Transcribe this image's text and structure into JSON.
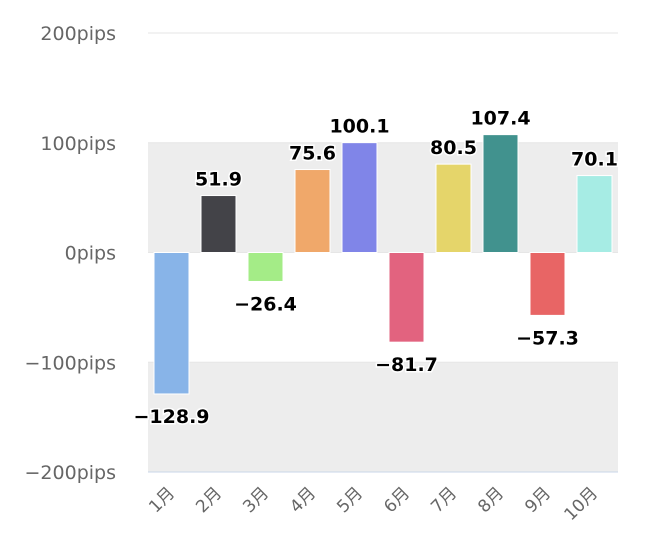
{
  "chart_data": {
    "type": "bar",
    "categories": [
      "1月",
      "2月",
      "3月",
      "4月",
      "5月",
      "6月",
      "7月",
      "8月",
      "9月",
      "10月"
    ],
    "values": [
      -128.9,
      51.9,
      -26.4,
      75.6,
      100.1,
      -81.7,
      80.5,
      107.4,
      -57.3,
      70.1
    ],
    "value_labels": [
      "−128.9",
      "51.9",
      "−26.4",
      "75.6",
      "100.1",
      "−81.7",
      "80.5",
      "107.4",
      "−57.3",
      "70.1"
    ],
    "colors": [
      "#88b4e8",
      "#434348",
      "#a4ec87",
      "#f0a86a",
      "#8085e8",
      "#e2637f",
      "#e5d56a",
      "#41928e",
      "#e86565",
      "#a6ece4"
    ],
    "ylim": [
      -200,
      200
    ],
    "yticks": [
      {
        "value": 200,
        "label": "200pips"
      },
      {
        "value": 100,
        "label": "100pips"
      },
      {
        "value": 0,
        "label": "0pips"
      },
      {
        "value": -100,
        "label": "−100pips"
      },
      {
        "value": -200,
        "label": "−200pips"
      }
    ],
    "bands": [
      [
        0,
        100
      ],
      [
        -200,
        -100
      ]
    ],
    "band_color": "#ededed",
    "grid": true,
    "title": "",
    "xlabel": "",
    "ylabel": ""
  }
}
